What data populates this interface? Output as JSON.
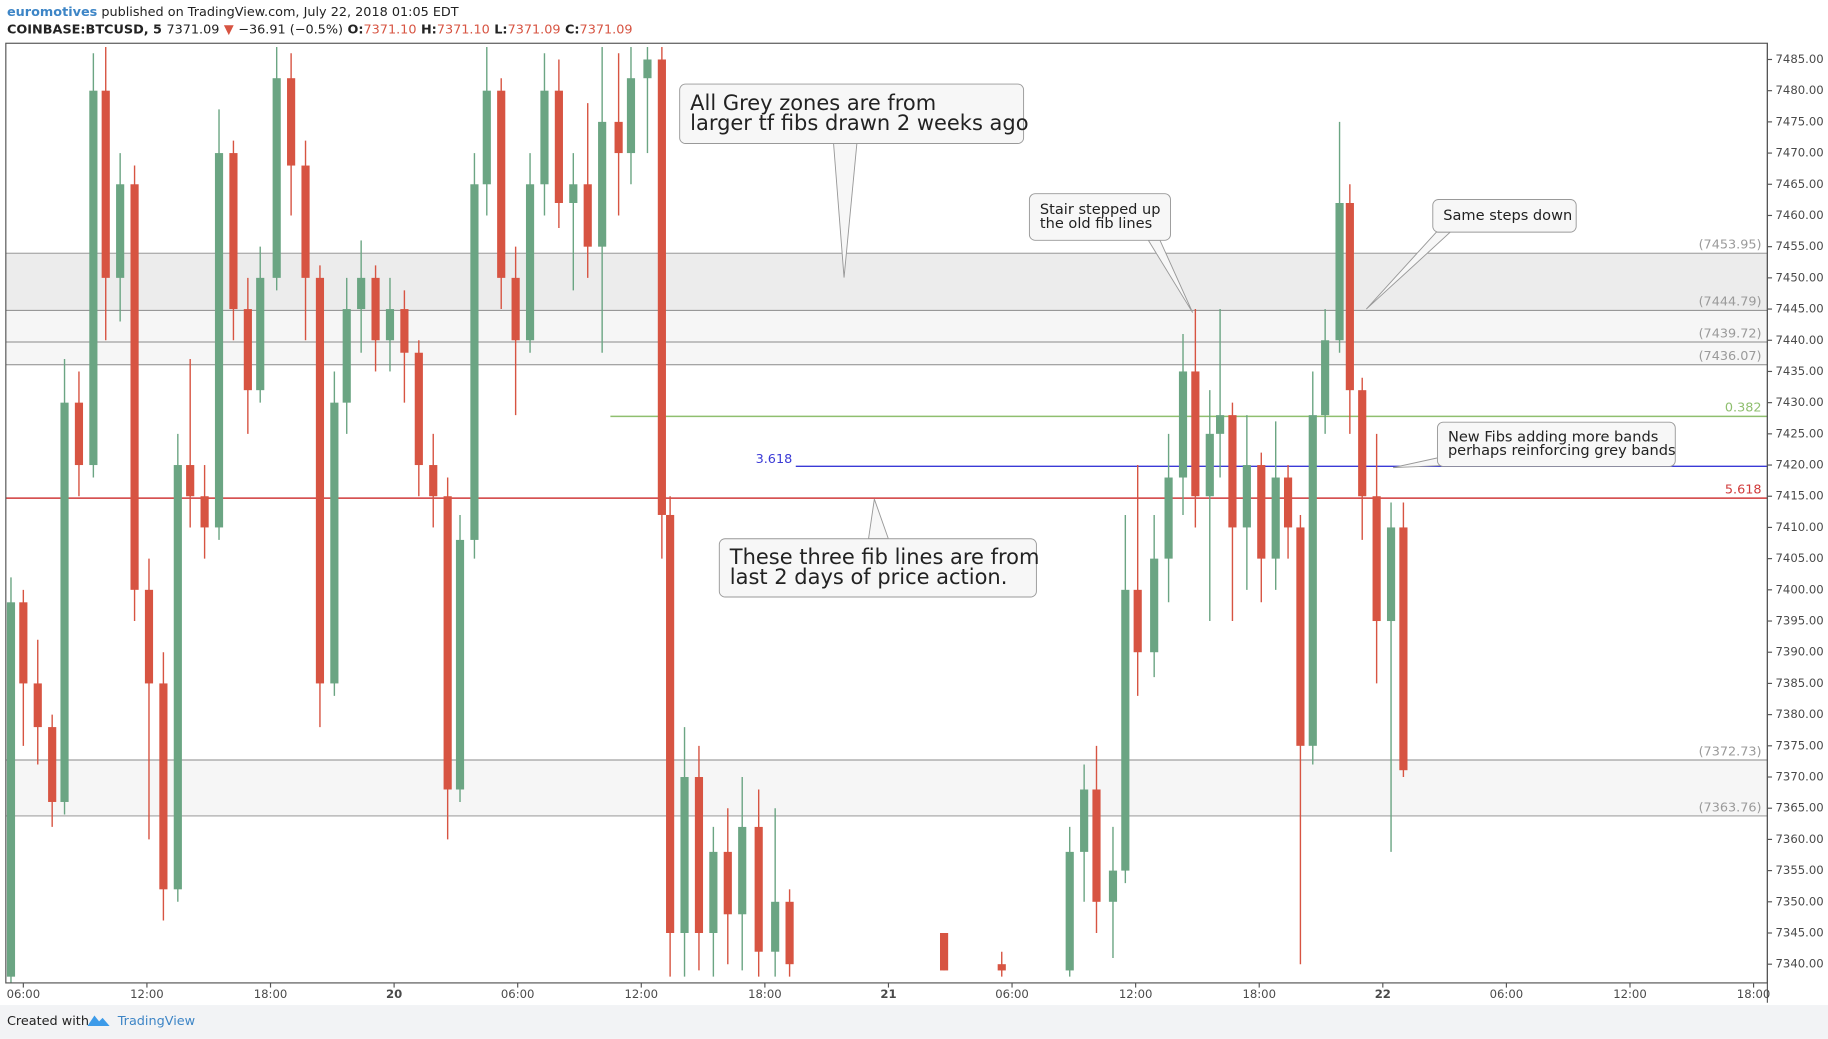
{
  "header": {
    "author": "euromotives",
    "published": "published on TradingView.com, July 22, 2018 01:05 EDT",
    "symbol": "COINBASE:BTCUSD, 5",
    "last": "7371.09",
    "arrow": "▼",
    "change": "−36.91 (−0.5%)",
    "o_label": "O:",
    "o": "7371.10",
    "h_label": "H:",
    "h": "7371.10",
    "l_label": "L:",
    "l": "7371.09",
    "c_label": "C:",
    "c": "7371.09"
  },
  "footer": {
    "created": "Created with",
    "brand": "TradingView"
  },
  "chart_data": {
    "type": "candlestick",
    "up_color": "#6ba583",
    "down_color": "#d75442",
    "grid": false,
    "xlim": [
      5.15,
      90.67
    ],
    "ylim": [
      7337,
      7487.6
    ],
    "xticks": [
      {
        "value": 6,
        "label": "06:00"
      },
      {
        "value": 12,
        "label": "12:00"
      },
      {
        "value": 18,
        "label": "18:00"
      },
      {
        "value": 24,
        "label": "20"
      },
      {
        "value": 30,
        "label": "06:00"
      },
      {
        "value": 36,
        "label": "12:00"
      },
      {
        "value": 42,
        "label": "18:00"
      },
      {
        "value": 48,
        "label": "21"
      },
      {
        "value": 54,
        "label": "06:00"
      },
      {
        "value": 60,
        "label": "12:00"
      },
      {
        "value": 66,
        "label": "18:00"
      },
      {
        "value": 72,
        "label": "22"
      },
      {
        "value": 78,
        "label": "06:00"
      },
      {
        "value": 84,
        "label": "12:00"
      },
      {
        "value": 90,
        "label": "18:00"
      }
    ],
    "yticks": [
      {
        "value": 7340,
        "label": "7340.00"
      },
      {
        "value": 7345,
        "label": "7345.00"
      },
      {
        "value": 7350,
        "label": "7350.00"
      },
      {
        "value": 7355,
        "label": "7355.00"
      },
      {
        "value": 7360,
        "label": "7360.00"
      },
      {
        "value": 7365,
        "label": "7365.00"
      },
      {
        "value": 7370,
        "label": "7370.00"
      },
      {
        "value": 7375,
        "label": "7375.00"
      },
      {
        "value": 7380,
        "label": "7380.00"
      },
      {
        "value": 7385,
        "label": "7385.00"
      },
      {
        "value": 7390,
        "label": "7390.00"
      },
      {
        "value": 7395,
        "label": "7395.00"
      },
      {
        "value": 7400,
        "label": "7400.00"
      },
      {
        "value": 7405,
        "label": "7405.00"
      },
      {
        "value": 7410,
        "label": "7410.00"
      },
      {
        "value": 7415,
        "label": "7415.00"
      },
      {
        "value": 7420,
        "label": "7420.00"
      },
      {
        "value": 7425,
        "label": "7425.00"
      },
      {
        "value": 7430,
        "label": "7430.00"
      },
      {
        "value": 7435,
        "label": "7435.00"
      },
      {
        "value": 7440,
        "label": "7440.00"
      },
      {
        "value": 7445,
        "label": "7445.00"
      },
      {
        "value": 7450,
        "label": "7450.00"
      },
      {
        "value": 7455,
        "label": "7455.00"
      },
      {
        "value": 7460,
        "label": "7460.00"
      },
      {
        "value": 7465,
        "label": "7465.00"
      },
      {
        "value": 7470,
        "label": "7470.00"
      },
      {
        "value": 7475,
        "label": "7475.00"
      },
      {
        "value": 7480,
        "label": "7480.00"
      },
      {
        "value": 7485,
        "label": "7485.00"
      }
    ],
    "x": [
      5.4,
      6.0,
      6.7,
      7.4,
      8.0,
      8.7,
      9.4,
      10.0,
      10.7,
      11.4,
      12.1,
      12.8,
      13.5,
      14.1,
      14.8,
      15.5,
      16.2,
      16.9,
      17.5,
      18.3,
      19.0,
      19.7,
      20.4,
      21.1,
      21.7,
      22.4,
      23.1,
      23.8,
      24.5,
      25.2,
      25.9,
      26.6,
      27.2,
      27.9,
      28.5,
      29.2,
      29.9,
      30.6,
      31.3,
      32.0,
      32.7,
      33.4,
      34.1,
      34.9,
      35.5,
      36.3,
      37.0,
      37.4,
      38.1,
      38.8,
      39.5,
      40.2,
      40.9,
      41.7,
      42.5,
      43.2,
      50.7,
      53.5,
      56.8,
      57.5,
      58.1,
      58.9,
      59.5,
      60.1,
      60.9,
      61.6,
      62.3,
      62.9,
      63.6,
      64.1,
      64.7,
      65.4,
      66.1,
      66.8,
      67.4,
      68.0,
      68.6,
      69.2,
      69.9,
      70.4,
      71.0,
      71.7,
      72.4,
      73.0
    ],
    "open": [
      7338,
      7398,
      7385,
      7378,
      7366,
      7430,
      7420,
      7480,
      7450,
      7465,
      7400,
      7385,
      7352,
      7420,
      7415,
      7410,
      7470,
      7445,
      7432,
      7450,
      7482,
      7468,
      7450,
      7385,
      7430,
      7445,
      7450,
      7440,
      7445,
      7438,
      7420,
      7415,
      7368,
      7408,
      7465,
      7480,
      7450,
      7440,
      7465,
      7480,
      7462,
      7465,
      7455,
      7475,
      7470,
      7482,
      7485,
      7412,
      7345,
      7370,
      7345,
      7358,
      7348,
      7362,
      7342,
      7350,
      7345,
      7340,
      7339,
      7358,
      7368,
      7350,
      7355,
      7400,
      7390,
      7405,
      7418,
      7435,
      7415,
      7425,
      7428,
      7410,
      7420,
      7405,
      7418,
      7410,
      7375,
      7428,
      7440,
      7462,
      7432,
      7415,
      7395,
      7410
    ],
    "high": [
      7402,
      7400,
      7392,
      7380,
      7437,
      7435,
      7486,
      7487,
      7470,
      7468,
      7405,
      7390,
      7425,
      7437,
      7420,
      7477,
      7472,
      7450,
      7455,
      7487,
      7486,
      7472,
      7452,
      7435,
      7450,
      7456,
      7452,
      7450,
      7448,
      7440,
      7425,
      7418,
      7412,
      7470,
      7487,
      7482,
      7455,
      7470,
      7486,
      7485,
      7470,
      7478,
      7487,
      7486,
      7487,
      7487,
      7487,
      7415,
      7378,
      7375,
      7362,
      7365,
      7370,
      7368,
      7365,
      7352,
      7345,
      7342,
      7362,
      7372,
      7375,
      7362,
      7412,
      7420,
      7412,
      7425,
      7441,
      7445,
      7432,
      7445,
      7430,
      7428,
      7422,
      7427,
      7420,
      7412,
      7435,
      7445,
      7475,
      7465,
      7434,
      7425,
      7414,
      7414
    ],
    "low": [
      7337,
      7375,
      7372,
      7362,
      7364,
      7415,
      7418,
      7440,
      7443,
      7395,
      7360,
      7347,
      7350,
      7410,
      7405,
      7408,
      7440,
      7425,
      7430,
      7448,
      7460,
      7440,
      7378,
      7383,
      7425,
      7438,
      7435,
      7435,
      7430,
      7415,
      7410,
      7360,
      7366,
      7405,
      7460,
      7445,
      7428,
      7438,
      7460,
      7458,
      7448,
      7450,
      7438,
      7460,
      7465,
      7470,
      7405,
      7338,
      7338,
      7339,
      7338,
      7340,
      7339,
      7338,
      7338,
      7338,
      7339,
      7338,
      7338,
      7350,
      7345,
      7341,
      7353,
      7383,
      7386,
      7398,
      7412,
      7410,
      7395,
      7418,
      7395,
      7400,
      7398,
      7400,
      7405,
      7340,
      7372,
      7425,
      7438,
      7425,
      7408,
      7385,
      7358,
      7370
    ],
    "close": [
      7398,
      7385,
      7378,
      7366,
      7430,
      7420,
      7480,
      7450,
      7465,
      7400,
      7385,
      7352,
      7420,
      7415,
      7410,
      7470,
      7445,
      7432,
      7450,
      7482,
      7468,
      7450,
      7385,
      7430,
      7445,
      7450,
      7440,
      7445,
      7438,
      7420,
      7415,
      7368,
      7408,
      7465,
      7480,
      7450,
      7440,
      7465,
      7480,
      7462,
      7465,
      7455,
      7475,
      7470,
      7482,
      7485,
      7412,
      7345,
      7370,
      7345,
      7358,
      7348,
      7362,
      7342,
      7350,
      7340,
      7339,
      7339,
      7358,
      7368,
      7350,
      7355,
      7400,
      7390,
      7405,
      7418,
      7435,
      7415,
      7425,
      7428,
      7410,
      7420,
      7405,
      7418,
      7410,
      7375,
      7428,
      7440,
      7462,
      7432,
      7415,
      7395,
      7410,
      7371.09
    ],
    "levels": [
      {
        "value": 7453.95,
        "label": "(7453.95)",
        "fill_below": "#ececec"
      },
      {
        "value": 7444.79,
        "label": "(7444.79)",
        "fill_below": "#f6f6f6"
      },
      {
        "value": 7439.72,
        "label": "(7439.72)",
        "fill_below": "#f6f6f6"
      },
      {
        "value": 7436.07,
        "label": "(7436.07)"
      },
      {
        "value": 7372.73,
        "label": "(7372.73)",
        "fill_below": "#f6f6f6"
      },
      {
        "value": 7363.76,
        "label": "(7363.76)"
      }
    ],
    "fib_lines": [
      {
        "name": "0.382",
        "value": 7427.8,
        "color": "#8fbf6f",
        "start": 34.5
      },
      {
        "name": "3.618",
        "value": 7419.8,
        "color": "#3a3ad6",
        "start": 43.5
      },
      {
        "name": "5.618",
        "value": 7414.7,
        "color": "#d03a3a",
        "start": 5.15
      }
    ],
    "annotations": [
      {
        "lines": [
          "All Grey zones are from",
          "larger tf fibs drawn 2 weeks ago"
        ]
      },
      {
        "lines": [
          "These three fib lines are from",
          "last 2 days of price action."
        ]
      },
      {
        "lines": [
          "Stair stepped up",
          "the old fib lines"
        ]
      },
      {
        "lines": [
          "Same steps down"
        ]
      },
      {
        "lines": [
          "New Fibs adding more bands",
          "perhaps reinforcing grey bands"
        ]
      }
    ]
  }
}
